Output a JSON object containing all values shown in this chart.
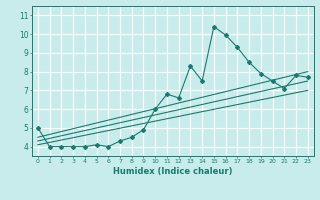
{
  "title": "",
  "xlabel": "Humidex (Indice chaleur)",
  "ylabel": "",
  "bg_color": "#c8ecec",
  "grid_color": "#ffffff",
  "line_color": "#1a7a6e",
  "xlim": [
    -0.5,
    23.5
  ],
  "ylim": [
    3.5,
    11.5
  ],
  "xticks": [
    0,
    1,
    2,
    3,
    4,
    5,
    6,
    7,
    8,
    9,
    10,
    11,
    12,
    13,
    14,
    15,
    16,
    17,
    18,
    19,
    20,
    21,
    22,
    23
  ],
  "yticks": [
    4,
    5,
    6,
    7,
    8,
    9,
    10,
    11
  ],
  "series1_x": [
    0,
    1,
    2,
    3,
    4,
    5,
    6,
    7,
    8,
    9,
    10,
    11,
    12,
    13,
    14,
    15,
    16,
    17,
    18,
    19,
    20,
    21,
    22,
    23
  ],
  "series1_y": [
    5.0,
    4.0,
    4.0,
    4.0,
    4.0,
    4.1,
    4.0,
    4.3,
    4.5,
    4.9,
    6.0,
    6.8,
    6.6,
    8.3,
    7.5,
    10.4,
    9.95,
    9.3,
    8.5,
    7.9,
    7.5,
    7.1,
    7.8,
    7.7
  ],
  "line1_x": [
    0,
    23
  ],
  "line1_y": [
    4.1,
    7.0
  ],
  "line2_x": [
    0,
    23
  ],
  "line2_y": [
    4.3,
    7.5
  ],
  "line3_x": [
    0,
    23
  ],
  "line3_y": [
    4.5,
    8.0
  ]
}
